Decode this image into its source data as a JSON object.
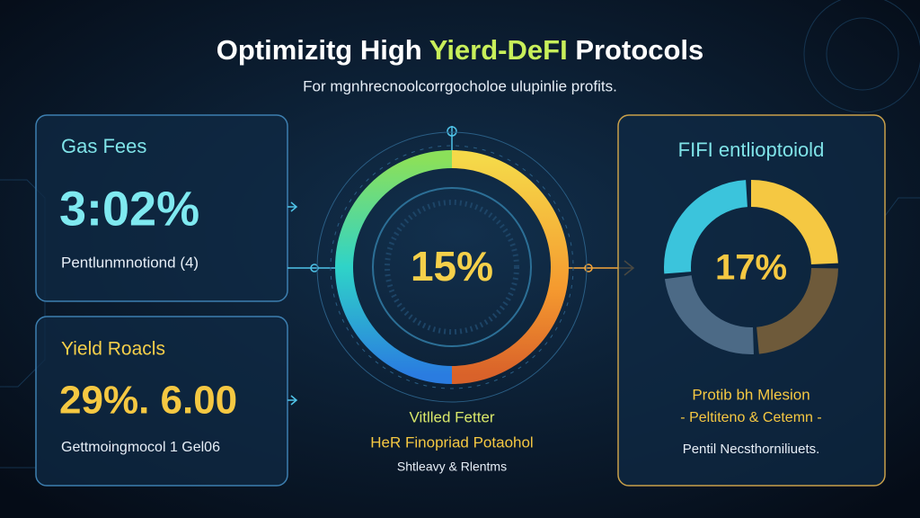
{
  "header": {
    "title_start": "Optimizitg High",
    "title_highlight": "Yierd-DeFI",
    "title_end": "Protocols",
    "subtitle": "For mgnhrecnoolcorrgocholoe ulupinlie profits."
  },
  "left_cards": [
    {
      "title": "Gas Fees",
      "value": "3:02%",
      "note": "Pentlunmnotiond (4)"
    },
    {
      "title": "Yield Roacls",
      "value": "29%. 6.00",
      "note": "Gettmoingmocol 1 Gel06"
    }
  ],
  "center": {
    "value": "15%",
    "lines": [
      "Vitlled Fetter",
      "HeR Finopriad Potaohol",
      "Shtleavy & Rlentms"
    ]
  },
  "right_card": {
    "title": "FIFI entlioptoiold",
    "value": "17%",
    "lines": [
      "Protib bh Mlesion",
      "- Peltiteno & Cetemn -",
      "Pentil Necsthorniliuets."
    ]
  }
}
